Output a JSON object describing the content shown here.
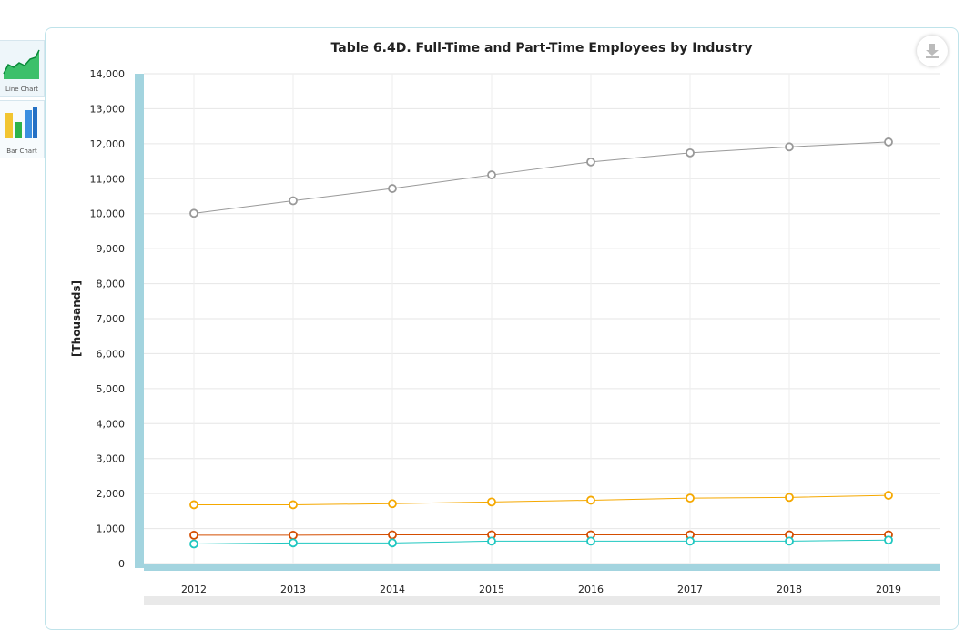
{
  "sidebar": {
    "items": [
      {
        "label": "Line Chart",
        "icon": "line-chart-icon"
      },
      {
        "label": "Bar Chart",
        "icon": "bar-chart-icon"
      }
    ]
  },
  "toolbar": {
    "download_icon": "download-icon"
  },
  "colors": {
    "axis_band": "#a3d4df",
    "series": [
      "#999999",
      "#f5a800",
      "#d44d00",
      "#1fc7c0"
    ]
  },
  "chart_data": {
    "type": "line",
    "title": "Table 6.4D. Full-Time and Part-Time Employees by Industry",
    "ylabel": "[Thousands]",
    "xlabel": "",
    "x": [
      "2012",
      "2013",
      "2014",
      "2015",
      "2016",
      "2017",
      "2018",
      "2019"
    ],
    "ylim": [
      0,
      14000
    ],
    "yticks": [
      0,
      1000,
      2000,
      3000,
      4000,
      5000,
      6000,
      7000,
      8000,
      9000,
      10000,
      11000,
      12000,
      13000,
      14000
    ],
    "ytick_labels": [
      "0",
      "1,000",
      "2,000",
      "3,000",
      "4,000",
      "5,000",
      "6,000",
      "7,000",
      "8,000",
      "9,000",
      "10,000",
      "11,000",
      "12,000",
      "13,000",
      "14,000"
    ],
    "grid": true,
    "legend": "none",
    "series": [
      {
        "color": "#999999",
        "values": [
          10010,
          10370,
          10720,
          11110,
          11480,
          11740,
          11910,
          12050
        ]
      },
      {
        "color": "#f5a800",
        "values": [
          1680,
          1680,
          1710,
          1760,
          1810,
          1870,
          1890,
          1950
        ]
      },
      {
        "color": "#d44d00",
        "values": [
          810,
          810,
          820,
          820,
          820,
          820,
          820,
          820
        ]
      },
      {
        "color": "#1fc7c0",
        "values": [
          560,
          590,
          590,
          640,
          640,
          640,
          640,
          670
        ]
      }
    ]
  }
}
